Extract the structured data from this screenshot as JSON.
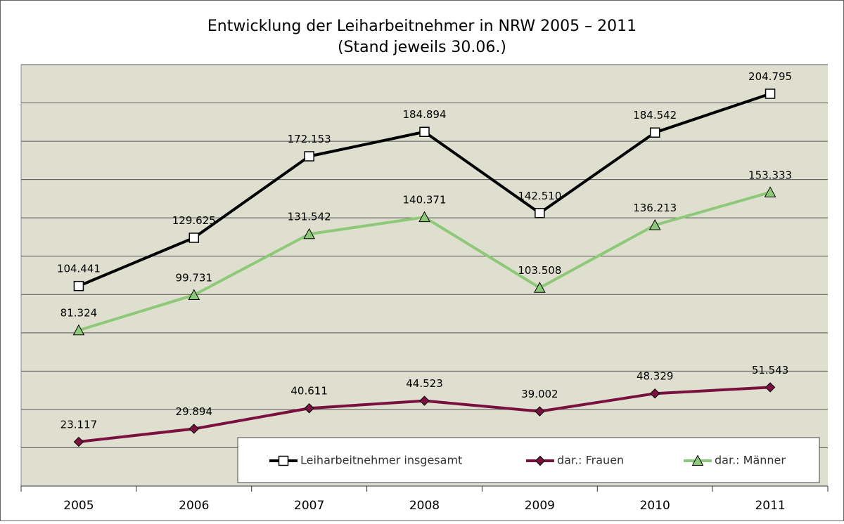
{
  "chart_data": {
    "type": "line",
    "title": "Entwicklung der Leiharbeitnehmer in NRW 2005 – 2011",
    "subtitle": "(Stand jeweils 30.06.)",
    "categories": [
      "2005",
      "2006",
      "2007",
      "2008",
      "2009",
      "2010",
      "2011"
    ],
    "ylim": [
      0,
      220000
    ],
    "yticks": [
      0,
      20000,
      40000,
      60000,
      80000,
      100000,
      120000,
      140000,
      160000,
      180000,
      200000,
      220000
    ],
    "grid": true,
    "series": [
      {
        "name": "Leiharbeitnehmer insgesamt",
        "color": "#000000",
        "marker": "square",
        "values": [
          104441,
          129625,
          172153,
          184894,
          142510,
          184542,
          204795
        ],
        "value_labels": [
          "104.441",
          "129.625",
          "172.153",
          "184.894",
          "142.510",
          "184.542",
          "204.795"
        ]
      },
      {
        "name": "dar.: Frauen",
        "color": "#7a1040",
        "marker": "diamond",
        "values": [
          23117,
          29894,
          40611,
          44523,
          39002,
          48329,
          51543
        ],
        "value_labels": [
          "23.117",
          "29.894",
          "40.611",
          "44.523",
          "39.002",
          "48.329",
          "51.543"
        ]
      },
      {
        "name": "dar.: Männer",
        "color": "#8ec97a",
        "marker": "triangle",
        "values": [
          81324,
          99731,
          131542,
          140371,
          103508,
          136213,
          153333
        ],
        "value_labels": [
          "81.324",
          "99.731",
          "131.542",
          "140.371",
          "103.508",
          "136.213",
          "153.333"
        ]
      }
    ]
  }
}
